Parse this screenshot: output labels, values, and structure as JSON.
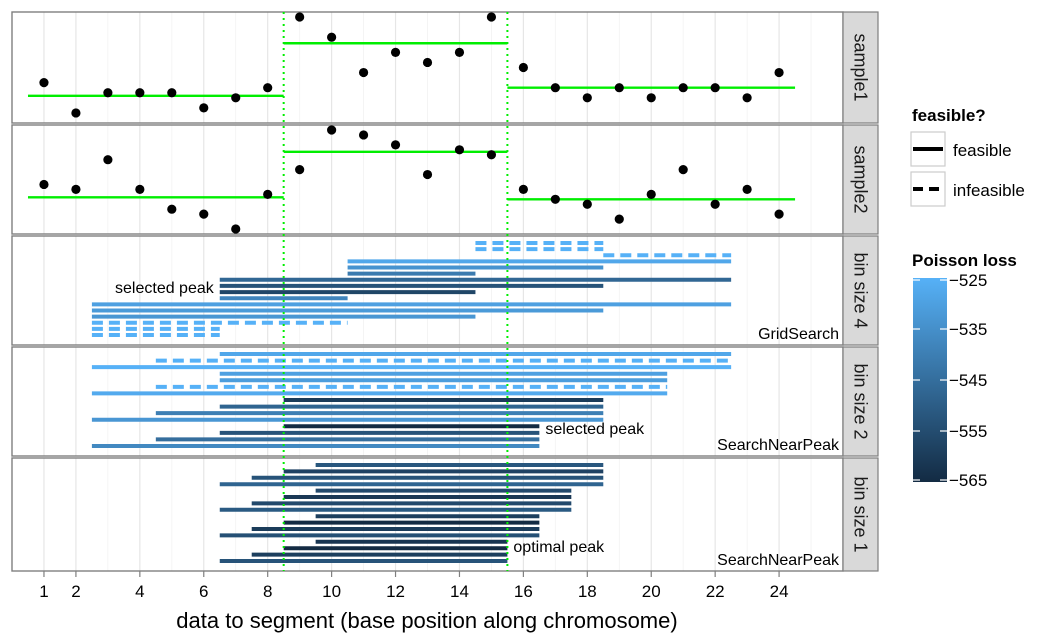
{
  "chart_data": {
    "type": "line",
    "xlabel": "data to segment (base position along chromosome)",
    "x_ticks": [
      1,
      2,
      4,
      6,
      8,
      10,
      12,
      14,
      16,
      18,
      20,
      22,
      24
    ],
    "xlim": [
      0,
      26
    ],
    "facets": [
      "sample1",
      "sample2",
      "bin size 4",
      "bin size 2",
      "bin size 1"
    ],
    "peak_boundaries": [
      8.5,
      15.5
    ],
    "colors": {
      "segment_line": "#00ee00",
      "peak_boundary": "#00ee00",
      "point": "#000000",
      "loss_low": "#132b43",
      "loss_high": "#56b1f7"
    },
    "samples": [
      {
        "name": "sample1",
        "ylim": [
          0,
          10
        ],
        "points": [
          {
            "x": 1,
            "y": 3.5
          },
          {
            "x": 2,
            "y": 0.5
          },
          {
            "x": 3,
            "y": 2.5
          },
          {
            "x": 4,
            "y": 2.5
          },
          {
            "x": 5,
            "y": 2.5
          },
          {
            "x": 6,
            "y": 1.0
          },
          {
            "x": 7,
            "y": 2.0
          },
          {
            "x": 8,
            "y": 3.0
          },
          {
            "x": 9,
            "y": 10.0
          },
          {
            "x": 10,
            "y": 8.0
          },
          {
            "x": 11,
            "y": 4.5
          },
          {
            "x": 12,
            "y": 6.5
          },
          {
            "x": 13,
            "y": 5.5
          },
          {
            "x": 14,
            "y": 6.5
          },
          {
            "x": 15,
            "y": 10.0
          },
          {
            "x": 16,
            "y": 5.0
          },
          {
            "x": 17,
            "y": 3.0
          },
          {
            "x": 18,
            "y": 2.0
          },
          {
            "x": 19,
            "y": 3.0
          },
          {
            "x": 20,
            "y": 2.0
          },
          {
            "x": 21,
            "y": 3.0
          },
          {
            "x": 22,
            "y": 3.0
          },
          {
            "x": 23,
            "y": 2.0
          },
          {
            "x": 24,
            "y": 4.5
          }
        ],
        "segments": [
          {
            "x1": 0.5,
            "x2": 8.5,
            "y": 2.2
          },
          {
            "x1": 8.5,
            "x2": 15.5,
            "y": 7.4
          },
          {
            "x1": 15.5,
            "x2": 24.5,
            "y": 3.0
          }
        ]
      },
      {
        "name": "sample2",
        "ylim": [
          0,
          10
        ],
        "points": [
          {
            "x": 1,
            "y": 4.5
          },
          {
            "x": 2,
            "y": 4.0
          },
          {
            "x": 3,
            "y": 7.0
          },
          {
            "x": 4,
            "y": 4.0
          },
          {
            "x": 5,
            "y": 2.0
          },
          {
            "x": 6,
            "y": 1.5
          },
          {
            "x": 7,
            "y": 0.0
          },
          {
            "x": 8,
            "y": 3.5
          },
          {
            "x": 9,
            "y": 6.0
          },
          {
            "x": 10,
            "y": 10.0
          },
          {
            "x": 11,
            "y": 9.5
          },
          {
            "x": 12,
            "y": 8.5
          },
          {
            "x": 13,
            "y": 5.5
          },
          {
            "x": 14,
            "y": 8.0
          },
          {
            "x": 15,
            "y": 7.5
          },
          {
            "x": 16,
            "y": 4.0
          },
          {
            "x": 17,
            "y": 3.0
          },
          {
            "x": 18,
            "y": 2.5
          },
          {
            "x": 19,
            "y": 1.0
          },
          {
            "x": 20,
            "y": 3.5
          },
          {
            "x": 21,
            "y": 6.0
          },
          {
            "x": 22,
            "y": 2.5
          },
          {
            "x": 23,
            "y": 4.0
          },
          {
            "x": 24,
            "y": 1.5
          }
        ],
        "segments": [
          {
            "x1": 0.5,
            "x2": 8.5,
            "y": 3.2
          },
          {
            "x1": 8.5,
            "x2": 15.5,
            "y": 7.8
          },
          {
            "x1": 15.5,
            "x2": 24.5,
            "y": 3.0
          }
        ]
      }
    ],
    "searches": [
      {
        "name": "bin size 4",
        "method": "GridSearch",
        "selected_peak_label": "selected peak",
        "rows": [
          {
            "x1": 14.5,
            "x2": 18.5,
            "loss": -525,
            "feasible": false
          },
          {
            "x1": 14.5,
            "x2": 18.5,
            "loss": -525,
            "feasible": false
          },
          {
            "x1": 18.5,
            "x2": 22.5,
            "loss": -525,
            "feasible": false
          },
          {
            "x1": 10.5,
            "x2": 22.5,
            "loss": -528,
            "feasible": true
          },
          {
            "x1": 10.5,
            "x2": 18.5,
            "loss": -534,
            "feasible": true
          },
          {
            "x1": 10.5,
            "x2": 14.5,
            "loss": -541,
            "feasible": true
          },
          {
            "x1": 6.5,
            "x2": 22.5,
            "loss": -547,
            "feasible": true
          },
          {
            "x1": 6.5,
            "x2": 18.5,
            "loss": -553,
            "feasible": true
          },
          {
            "x1": 6.5,
            "x2": 14.5,
            "loss": -557,
            "feasible": true
          },
          {
            "x1": 6.5,
            "x2": 10.5,
            "loss": -538,
            "feasible": true
          },
          {
            "x1": 2.5,
            "x2": 22.5,
            "loss": -530,
            "feasible": true
          },
          {
            "x1": 2.5,
            "x2": 18.5,
            "loss": -532,
            "feasible": true
          },
          {
            "x1": 2.5,
            "x2": 14.5,
            "loss": -533,
            "feasible": true
          },
          {
            "x1": 2.5,
            "x2": 10.5,
            "loss": -525,
            "feasible": false
          },
          {
            "x1": 2.5,
            "x2": 6.5,
            "loss": -525,
            "feasible": false
          },
          {
            "x1": 2.5,
            "x2": 6.5,
            "loss": -525,
            "feasible": false
          }
        ]
      },
      {
        "name": "bin size 2",
        "method": "SearchNearPeak",
        "selected_peak_label": "selected peak",
        "rows": [
          {
            "x1": 6.5,
            "x2": 22.5,
            "loss": -528,
            "feasible": true
          },
          {
            "x1": 4.5,
            "x2": 22.5,
            "loss": -525,
            "feasible": false
          },
          {
            "x1": 2.5,
            "x2": 22.5,
            "loss": -525,
            "feasible": true
          },
          {
            "x1": 6.5,
            "x2": 20.5,
            "loss": -530,
            "feasible": true
          },
          {
            "x1": 6.5,
            "x2": 20.5,
            "loss": -531,
            "feasible": true
          },
          {
            "x1": 4.5,
            "x2": 20.5,
            "loss": -525,
            "feasible": false
          },
          {
            "x1": 2.5,
            "x2": 20.5,
            "loss": -527,
            "feasible": true
          },
          {
            "x1": 8.5,
            "x2": 18.5,
            "loss": -560,
            "feasible": true
          },
          {
            "x1": 6.5,
            "x2": 18.5,
            "loss": -548,
            "feasible": true
          },
          {
            "x1": 4.5,
            "x2": 18.5,
            "loss": -540,
            "feasible": true
          },
          {
            "x1": 2.5,
            "x2": 18.5,
            "loss": -533,
            "feasible": true
          },
          {
            "x1": 8.5,
            "x2": 16.5,
            "loss": -565,
            "feasible": true
          },
          {
            "x1": 6.5,
            "x2": 16.5,
            "loss": -553,
            "feasible": true
          },
          {
            "x1": 4.5,
            "x2": 16.5,
            "loss": -545,
            "feasible": true
          },
          {
            "x1": 2.5,
            "x2": 16.5,
            "loss": -537,
            "feasible": true
          }
        ]
      },
      {
        "name": "bin size 1",
        "method": "SearchNearPeak",
        "selected_peak_label": "optimal peak",
        "rows": [
          {
            "x1": 9.5,
            "x2": 18.5,
            "loss": -552,
            "feasible": true
          },
          {
            "x1": 8.5,
            "x2": 18.5,
            "loss": -558,
            "feasible": true
          },
          {
            "x1": 7.5,
            "x2": 18.5,
            "loss": -553,
            "feasible": true
          },
          {
            "x1": 6.5,
            "x2": 18.5,
            "loss": -548,
            "feasible": true
          },
          {
            "x1": 9.5,
            "x2": 17.5,
            "loss": -556,
            "feasible": true
          },
          {
            "x1": 8.5,
            "x2": 17.5,
            "loss": -561,
            "feasible": true
          },
          {
            "x1": 7.5,
            "x2": 17.5,
            "loss": -556,
            "feasible": true
          },
          {
            "x1": 6.5,
            "x2": 17.5,
            "loss": -551,
            "feasible": true
          },
          {
            "x1": 9.5,
            "x2": 16.5,
            "loss": -559,
            "feasible": true
          },
          {
            "x1": 8.5,
            "x2": 16.5,
            "loss": -565,
            "feasible": true
          },
          {
            "x1": 7.5,
            "x2": 16.5,
            "loss": -560,
            "feasible": true
          },
          {
            "x1": 6.5,
            "x2": 16.5,
            "loss": -554,
            "feasible": true
          },
          {
            "x1": 9.5,
            "x2": 15.5,
            "loss": -562,
            "feasible": true
          },
          {
            "x1": 8.5,
            "x2": 15.5,
            "loss": -565,
            "feasible": true
          },
          {
            "x1": 7.5,
            "x2": 15.5,
            "loss": -559,
            "feasible": true
          },
          {
            "x1": 6.5,
            "x2": 15.5,
            "loss": -553,
            "feasible": true
          }
        ]
      }
    ],
    "legend": {
      "feasible": {
        "title": "feasible?",
        "items": [
          {
            "label": "feasible",
            "dash": "solid"
          },
          {
            "label": "infeasible",
            "dash": "dashed"
          }
        ]
      },
      "loss": {
        "title": "Poisson loss",
        "range": [
          -565,
          -525
        ],
        "ticks": [
          -525,
          -535,
          -545,
          -555,
          -565
        ],
        "tick_labels": [
          "−525",
          "−535",
          "−545",
          "−555",
          "−565"
        ]
      },
      "placement": "right"
    }
  }
}
